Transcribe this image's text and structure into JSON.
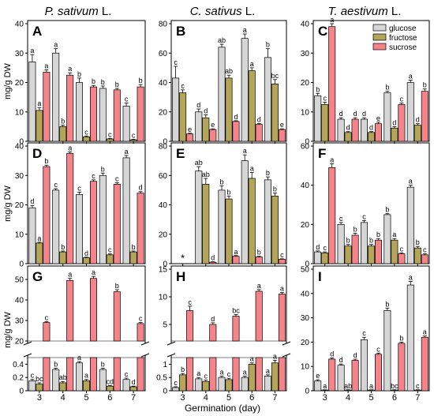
{
  "figure": {
    "column_titles": [
      {
        "species": "P. sativum",
        "suffix": " L."
      },
      {
        "species": "C. sativus",
        "suffix": " L."
      },
      {
        "species": "T. aestivum",
        "suffix": " L."
      }
    ],
    "ylabel": "mg/g DW",
    "xlabel": "Germination (day)",
    "legend": [
      "glucose",
      "fructose",
      "sucrose"
    ],
    "not_detected_marker": "*",
    "colors": {
      "glucose": "#d6d6d6",
      "fructose": "#b3a55a",
      "sucrose": "#f4848a"
    }
  },
  "chart_data": [
    {
      "panel": "A",
      "type": "bar",
      "categories": [
        "3",
        "4",
        "5",
        "6",
        "7"
      ],
      "ylim": [
        0,
        40
      ],
      "yticks": [
        0,
        10,
        20,
        30,
        40
      ],
      "series": [
        {
          "name": "glucose",
          "values": [
            27,
            30,
            20,
            18,
            12
          ],
          "errors": [
            2.5,
            1.5,
            1.5,
            0.8,
            1
          ],
          "letters": [
            "a",
            "a",
            "b",
            "b",
            "c"
          ]
        },
        {
          "name": "fructose",
          "values": [
            10.5,
            5,
            1.5,
            0.8,
            0.5
          ],
          "errors": [
            1,
            0.5,
            0.3,
            0.2,
            0.2
          ],
          "letters": [
            "a",
            "b",
            "c",
            "c",
            "c"
          ]
        },
        {
          "name": "sucrose",
          "values": [
            23.5,
            22.5,
            18.5,
            17.5,
            18.5
          ],
          "errors": [
            0.8,
            0.8,
            0.5,
            0.5,
            0.8
          ],
          "letters": [
            "a",
            "a",
            "b",
            "b",
            "b"
          ]
        }
      ]
    },
    {
      "panel": "B",
      "type": "bar",
      "categories": [
        "3",
        "4",
        "5",
        "6",
        "7"
      ],
      "ylim": [
        0,
        80
      ],
      "yticks": [
        0,
        20,
        40,
        60,
        80
      ],
      "series": [
        {
          "name": "glucose",
          "values": [
            43,
            20,
            64,
            70,
            57
          ],
          "errors": [
            8,
            2,
            2,
            3,
            6
          ],
          "letters": [
            "c",
            "d",
            "ab",
            "a",
            "b"
          ]
        },
        {
          "name": "fructose",
          "values": [
            33,
            16,
            43,
            48,
            39
          ],
          "errors": [
            2,
            2,
            2,
            2,
            3
          ],
          "letters": [
            "c",
            "d",
            "ab",
            "a",
            "bc"
          ]
        },
        {
          "name": "sucrose",
          "values": [
            5,
            8,
            13.5,
            11.5,
            8
          ],
          "errors": [
            0.5,
            0.5,
            0.5,
            0.5,
            0.5
          ],
          "letters": [
            "e",
            "e",
            "d",
            "d",
            "e"
          ]
        }
      ]
    },
    {
      "panel": "C",
      "type": "bar",
      "categories": [
        "3",
        "4",
        "5",
        "6",
        "7"
      ],
      "ylim": [
        0,
        40
      ],
      "yticks": [
        0,
        10,
        20,
        30,
        40
      ],
      "series": [
        {
          "name": "glucose",
          "values": [
            15.5,
            7.5,
            7.5,
            16.5,
            20
          ],
          "errors": [
            0.8,
            0.5,
            0.5,
            0.5,
            0.8
          ],
          "letters": [
            "b",
            "d",
            "d",
            "b",
            "a"
          ]
        },
        {
          "name": "fructose",
          "values": [
            12.5,
            3,
            3,
            4.5,
            5.5
          ],
          "errors": [
            0.8,
            0.3,
            0.3,
            0.5,
            0.5
          ],
          "letters": [
            "c",
            "d",
            "d",
            "d",
            "d"
          ]
        },
        {
          "name": "sucrose",
          "values": [
            39,
            7.5,
            6,
            12.5,
            17
          ],
          "errors": [
            1,
            0.5,
            0.5,
            0.5,
            0.8
          ],
          "letters": [
            "a",
            "d",
            "e",
            "c",
            "b"
          ]
        }
      ]
    },
    {
      "panel": "D",
      "type": "bar",
      "categories": [
        "3",
        "4",
        "5",
        "6",
        "7"
      ],
      "ylim": [
        0,
        40
      ],
      "yticks": [
        0,
        10,
        20,
        30,
        40
      ],
      "series": [
        {
          "name": "glucose",
          "values": [
            19,
            25,
            23.5,
            30,
            36
          ],
          "errors": [
            0.8,
            0.5,
            0.8,
            0.8,
            0.8
          ],
          "letters": [
            "d",
            "c",
            "c",
            "b",
            "a"
          ]
        },
        {
          "name": "fructose",
          "values": [
            7,
            4,
            2,
            3,
            4
          ],
          "errors": [
            0.3,
            0.3,
            0.2,
            0.3,
            0.3
          ],
          "letters": [
            "a",
            "b",
            "d",
            "c",
            "b"
          ]
        },
        {
          "name": "sucrose",
          "values": [
            33,
            37.5,
            28,
            27,
            24
          ],
          "errors": [
            0.5,
            0.5,
            0.5,
            0.5,
            0.5
          ],
          "letters": [
            "b",
            "a",
            "c",
            "c",
            "d"
          ]
        }
      ]
    },
    {
      "panel": "E",
      "type": "bar",
      "categories": [
        "3",
        "4",
        "5",
        "6",
        "7"
      ],
      "ylim": [
        0,
        80
      ],
      "yticks": [
        0,
        20,
        40,
        60,
        80
      ],
      "series": [
        {
          "name": "glucose",
          "values": [
            0,
            63,
            50,
            70,
            57
          ],
          "errors": [
            0,
            3,
            3,
            4,
            2
          ],
          "letters": [
            "",
            "ab",
            "b",
            "a",
            "b"
          ]
        },
        {
          "name": "fructose",
          "values": [
            0,
            54,
            44,
            58,
            46
          ],
          "errors": [
            0,
            4,
            2,
            4,
            2
          ],
          "letters": [
            "",
            "ab",
            "b",
            "a",
            "b"
          ]
        },
        {
          "name": "sucrose",
          "values": [
            0,
            1,
            5,
            4.5,
            3
          ],
          "errors": [
            0,
            0.3,
            0.5,
            0.5,
            0.3
          ],
          "letters": [
            "",
            "d",
            "a",
            "b",
            "c"
          ]
        }
      ]
    },
    {
      "panel": "F",
      "type": "bar",
      "categories": [
        "3",
        "4",
        "5",
        "6",
        "7"
      ],
      "ylim": [
        0,
        60
      ],
      "yticks": [
        0,
        20,
        40,
        60
      ],
      "series": [
        {
          "name": "glucose",
          "values": [
            6,
            20,
            21,
            25,
            39
          ],
          "errors": [
            0.5,
            1,
            1,
            0.5,
            1
          ],
          "letters": [
            "d",
            "c",
            "c",
            "b",
            "a"
          ]
        },
        {
          "name": "fructose",
          "values": [
            5.5,
            9,
            9,
            12,
            8
          ],
          "errors": [
            0.5,
            0.8,
            0.8,
            0.8,
            0.8
          ],
          "letters": [
            "c",
            "b",
            "b",
            "a",
            "b"
          ]
        },
        {
          "name": "sucrose",
          "values": [
            49,
            14.5,
            12,
            5,
            4.5
          ],
          "errors": [
            2,
            1,
            0.8,
            0.5,
            0.5
          ],
          "letters": [
            "a",
            "b",
            "b",
            "c",
            "c"
          ]
        }
      ]
    },
    {
      "panel": "G",
      "type": "bar",
      "broken_axis": true,
      "categories": [
        "3",
        "4",
        "5",
        "6",
        "7"
      ],
      "lower_ylim": [
        0,
        0.5
      ],
      "lower_yticks": [
        0,
        0.2,
        0.4
      ],
      "upper_ylim": [
        20,
        55
      ],
      "upper_yticks": [
        20,
        30,
        40,
        50
      ],
      "series": [
        {
          "name": "glucose",
          "values": [
            0.15,
            0.32,
            0.42,
            0.32,
            0.17
          ],
          "errors": [
            0.02,
            0.02,
            0.02,
            0.02,
            0.02
          ],
          "letters": [
            "c",
            "b",
            "a",
            "b",
            "c"
          ]
        },
        {
          "name": "fructose",
          "values": [
            0.1,
            0.12,
            0.15,
            0.07,
            0.06
          ],
          "errors": [
            0.02,
            0.02,
            0.02,
            0.01,
            0.01
          ],
          "letters": [
            "bc",
            "ab",
            "a",
            "cd",
            "d"
          ]
        },
        {
          "name": "sucrose",
          "values": [
            29,
            49.5,
            50.5,
            44,
            28.5
          ],
          "errors": [
            0.5,
            1,
            1,
            1,
            0.5
          ],
          "letters": [
            "c",
            "a",
            "a",
            "b",
            "c"
          ]
        }
      ]
    },
    {
      "panel": "H",
      "type": "bar",
      "broken_axis": true,
      "categories": [
        "3",
        "4",
        "5",
        "6",
        "7"
      ],
      "lower_ylim": [
        0,
        1.25
      ],
      "lower_yticks": [
        0,
        0.5,
        1.0
      ],
      "upper_ylim": [
        2,
        15
      ],
      "upper_yticks": [
        5,
        10,
        15
      ],
      "series": [
        {
          "name": "glucose",
          "values": [
            0.12,
            0.45,
            0.5,
            0.5,
            0.55
          ],
          "errors": [
            0.03,
            0.05,
            0.05,
            0.05,
            0.05
          ],
          "letters": [
            "c",
            "a",
            "a",
            "a",
            "a"
          ]
        },
        {
          "name": "fructose",
          "values": [
            0.6,
            0.35,
            0.42,
            1.0,
            1.05
          ],
          "errors": [
            0.05,
            0.05,
            0.05,
            0.05,
            0.1
          ],
          "letters": [
            "b",
            "c",
            "c",
            "a",
            "a"
          ]
        },
        {
          "name": "sucrose",
          "values": [
            7.5,
            5,
            6.5,
            11,
            10.5
          ],
          "errors": [
            0.8,
            0.3,
            0.3,
            0.3,
            0.3
          ],
          "letters": [
            "c",
            "d",
            "bc",
            "a",
            "a"
          ]
        }
      ]
    },
    {
      "panel": "I",
      "type": "bar",
      "categories": [
        "3",
        "4",
        "5",
        "6",
        "7"
      ],
      "ylim": [
        0,
        50
      ],
      "yticks": [
        0,
        10,
        20,
        30,
        40,
        50
      ],
      "series": [
        {
          "name": "glucose",
          "values": [
            4,
            10.5,
            21,
            33,
            43.5
          ],
          "errors": [
            0.5,
            0.5,
            1,
            1,
            1.5
          ],
          "letters": [
            "e",
            "d",
            "c",
            "b",
            "a"
          ]
        },
        {
          "name": "fructose",
          "values": [
            0.3,
            0.3,
            0.3,
            0.3,
            0.3
          ],
          "errors": [
            0.1,
            0.1,
            0.1,
            0.1,
            0.1
          ],
          "letters": [
            "a",
            "ab",
            "a",
            "bc",
            "c"
          ]
        },
        {
          "name": "sucrose",
          "values": [
            13,
            12.5,
            15,
            19.5,
            22
          ],
          "errors": [
            0.5,
            0.5,
            0.5,
            0.5,
            0.5
          ],
          "letters": [
            "d",
            "d",
            "c",
            "b",
            "a"
          ]
        }
      ]
    }
  ]
}
